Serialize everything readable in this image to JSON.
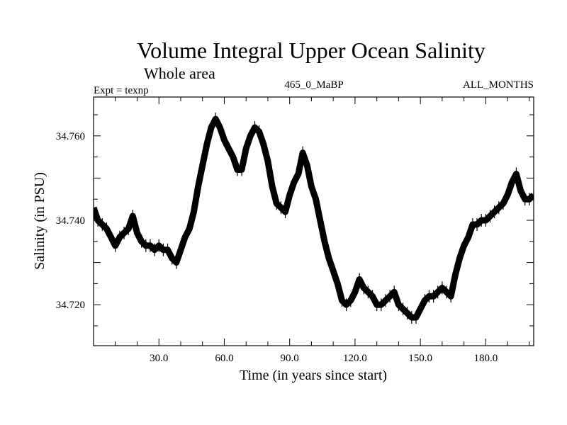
{
  "chart_data": {
    "type": "line",
    "title": "Volume Integral Upper Ocean Salinity",
    "subtitle": "Whole area",
    "left_label": "Expt = texnp",
    "center_label": "465_0_MaBP",
    "right_label": "ALL_MONTHS",
    "xlabel": "Time (in years since start)",
    "ylabel": "Salinity (in PSU)",
    "xlim": [
      0,
      202
    ],
    "ylim": [
      34.7103,
      34.7692
    ],
    "xticks": [
      30,
      60,
      90,
      120,
      150,
      180
    ],
    "xtick_labels": [
      "30.0",
      "60.0",
      "90.0",
      "120.0",
      "150.0",
      "180.0"
    ],
    "yticks": [
      34.72,
      34.74,
      34.76
    ],
    "ytick_labels": [
      "34.720",
      "34.740",
      "34.760"
    ],
    "grid": false,
    "series": [
      {
        "name": "Salinity",
        "color": "#000000",
        "x": [
          0,
          2,
          4,
          6,
          8,
          10,
          12,
          14,
          16,
          18,
          20,
          22,
          24,
          26,
          28,
          30,
          32,
          34,
          36,
          38,
          40,
          42,
          44,
          46,
          48,
          50,
          52,
          54,
          56,
          58,
          60,
          62,
          64,
          66,
          68,
          70,
          72,
          74,
          76,
          78,
          80,
          82,
          84,
          86,
          88,
          90,
          92,
          94,
          96,
          98,
          100,
          102,
          104,
          106,
          108,
          110,
          112,
          114,
          116,
          118,
          120,
          122,
          124,
          126,
          128,
          130,
          132,
          134,
          136,
          138,
          140,
          142,
          144,
          146,
          148,
          150,
          152,
          154,
          156,
          158,
          160,
          162,
          164,
          166,
          168,
          170,
          172,
          174,
          176,
          178,
          180,
          182,
          184,
          186,
          188,
          190,
          192,
          194,
          196,
          198,
          200,
          202
        ],
        "y": [
          34.743,
          34.74,
          34.739,
          34.738,
          34.736,
          34.734,
          34.736,
          34.737,
          34.738,
          34.741,
          34.737,
          34.735,
          34.734,
          34.734,
          34.733,
          34.734,
          34.733,
          34.733,
          34.731,
          34.73,
          34.733,
          34.736,
          34.738,
          34.742,
          34.748,
          34.753,
          34.758,
          34.762,
          34.764,
          34.762,
          34.759,
          34.757,
          34.755,
          34.752,
          34.752,
          34.757,
          34.76,
          34.762,
          34.761,
          34.758,
          34.754,
          34.748,
          34.744,
          34.743,
          34.742,
          34.746,
          34.749,
          34.751,
          34.756,
          34.753,
          34.748,
          34.745,
          34.74,
          34.735,
          34.731,
          34.728,
          34.725,
          34.721,
          34.72,
          34.721,
          34.723,
          34.726,
          34.724,
          34.723,
          34.722,
          34.72,
          34.72,
          34.721,
          34.722,
          34.723,
          34.72,
          34.719,
          34.718,
          34.717,
          34.717,
          34.719,
          34.721,
          34.722,
          34.722,
          34.723,
          34.724,
          34.723,
          34.722,
          34.727,
          34.731,
          34.734,
          34.736,
          34.739,
          34.739,
          34.74,
          34.74,
          34.741,
          34.742,
          34.743,
          34.744,
          34.746,
          34.749,
          34.751,
          34.747,
          34.745,
          34.745,
          34.746
        ]
      }
    ]
  }
}
